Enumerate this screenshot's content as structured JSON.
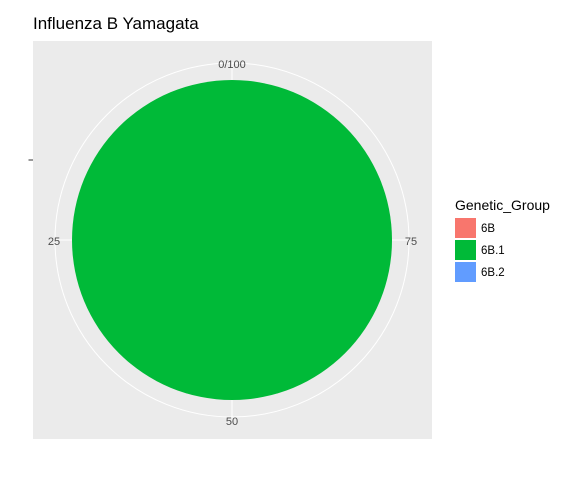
{
  "chart_data": {
    "type": "pie",
    "title": "Influenza B Yamagata",
    "theta_ticks": [
      "0/100",
      "25",
      "50",
      "75"
    ],
    "theta_tick_values": [
      0,
      25,
      50,
      75
    ],
    "theta_range": [
      0,
      100
    ],
    "categories": [
      "6B",
      "6B.1",
      "6B.2"
    ],
    "values": [
      0,
      100,
      0
    ],
    "colors": [
      "#F8766D",
      "#00BA38",
      "#619CFF"
    ],
    "legend": {
      "title": "Genetic_Group",
      "placement": "right",
      "entries": [
        "6B",
        "6B.1",
        "6B.2"
      ]
    },
    "panel_background": "#EBEBEB",
    "grid": true
  }
}
